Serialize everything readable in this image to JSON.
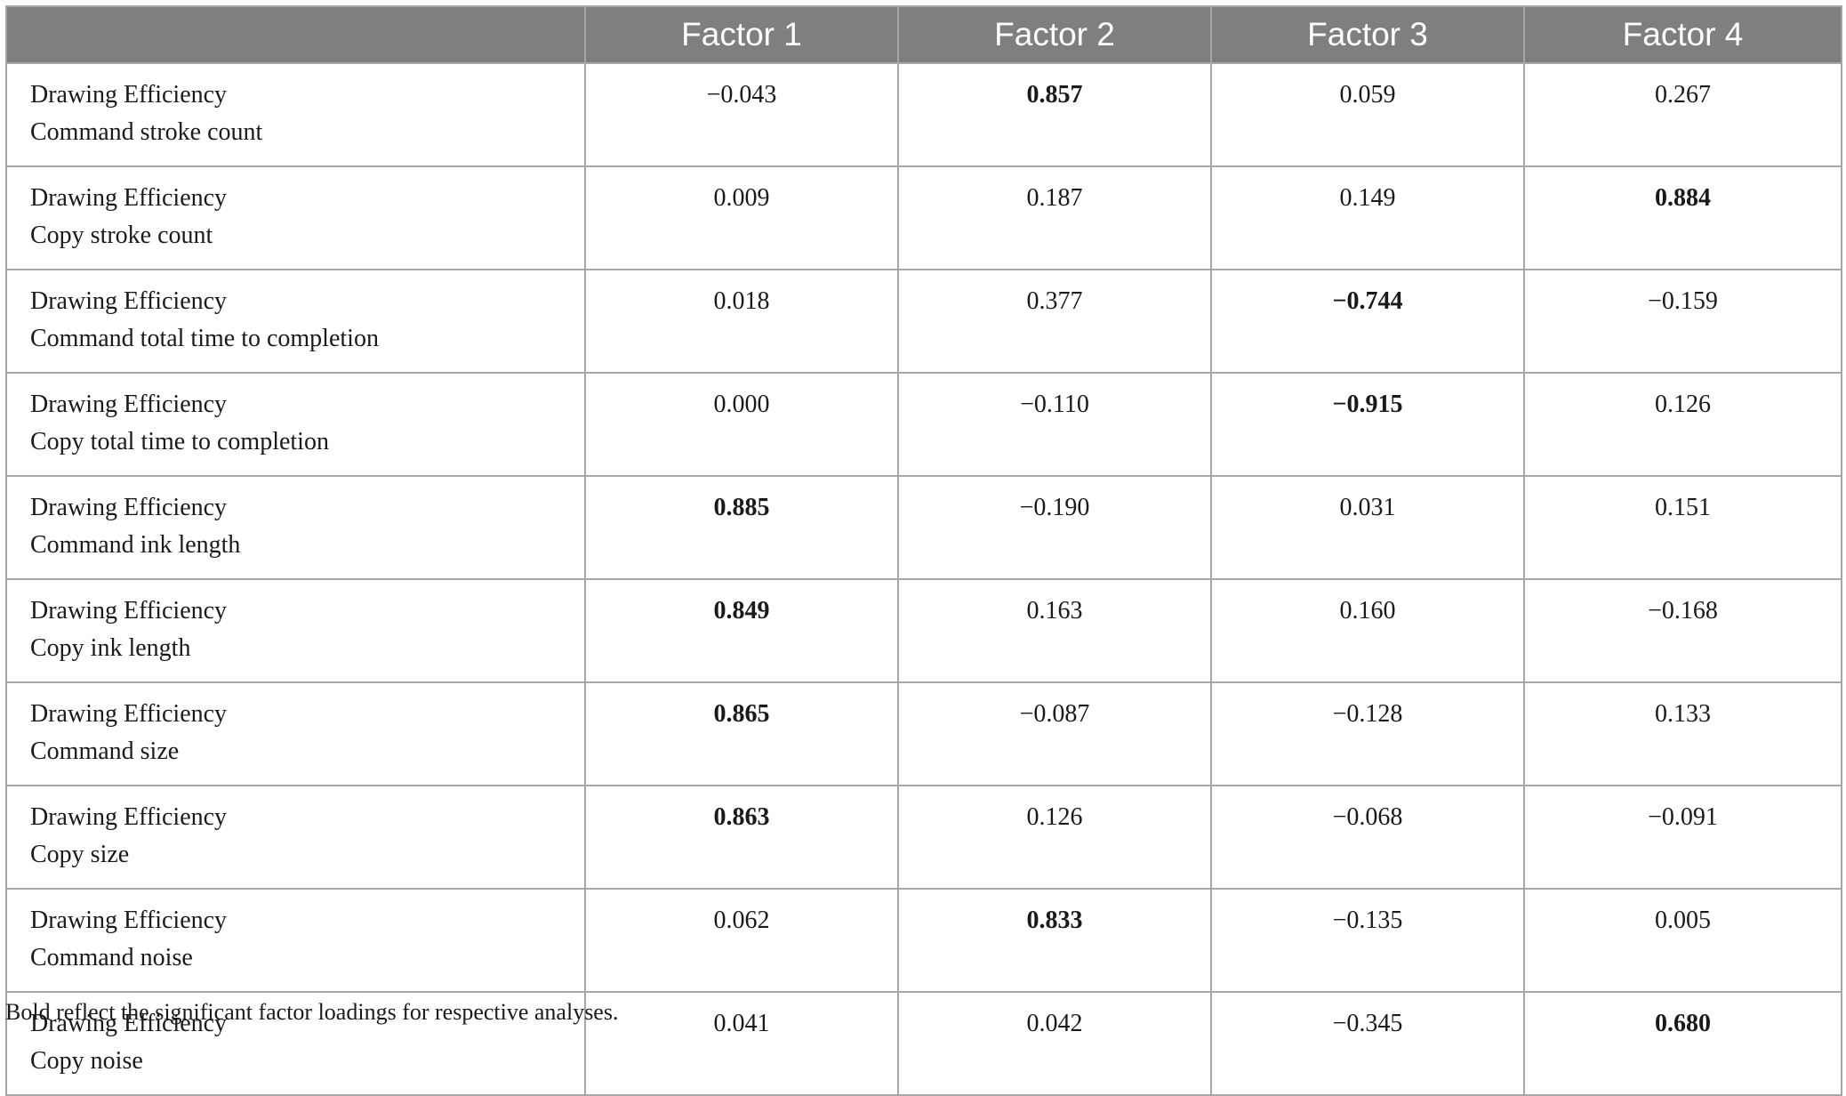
{
  "header": {
    "label_column": "",
    "factors": [
      "Factor 1",
      "Factor 2",
      "Factor 3",
      "Factor 4"
    ]
  },
  "rows": [
    {
      "category": "Drawing Efficiency",
      "measure": "Command stroke count",
      "values": [
        "−0.043",
        "0.857",
        "0.059",
        "0.267"
      ],
      "bold": [
        false,
        true,
        false,
        false
      ]
    },
    {
      "category": "Drawing Efficiency",
      "measure": "Copy stroke count",
      "values": [
        "0.009",
        "0.187",
        "0.149",
        "0.884"
      ],
      "bold": [
        false,
        false,
        false,
        true
      ]
    },
    {
      "category": "Drawing Efficiency",
      "measure": "Command total time to completion",
      "values": [
        "0.018",
        "0.377",
        "−0.744",
        "−0.159"
      ],
      "bold": [
        false,
        false,
        true,
        false
      ]
    },
    {
      "category": "Drawing Efficiency",
      "measure": "Copy total time to completion",
      "values": [
        "0.000",
        "−0.110",
        "−0.915",
        "0.126"
      ],
      "bold": [
        false,
        false,
        true,
        false
      ]
    },
    {
      "category": "Drawing Efficiency",
      "measure": "Command ink length",
      "values": [
        "0.885",
        "−0.190",
        "0.031",
        "0.151"
      ],
      "bold": [
        true,
        false,
        false,
        false
      ]
    },
    {
      "category": "Drawing Efficiency",
      "measure": "Copy ink length",
      "values": [
        "0.849",
        "0.163",
        "0.160",
        "−0.168"
      ],
      "bold": [
        true,
        false,
        false,
        false
      ]
    },
    {
      "category": "Drawing Efficiency",
      "measure": "Command size",
      "values": [
        "0.865",
        "−0.087",
        "−0.128",
        "0.133"
      ],
      "bold": [
        true,
        false,
        false,
        false
      ]
    },
    {
      "category": "Drawing Efficiency",
      "measure": "Copy size",
      "values": [
        "0.863",
        "0.126",
        "−0.068",
        "−0.091"
      ],
      "bold": [
        true,
        false,
        false,
        false
      ]
    },
    {
      "category": "Drawing Efficiency",
      "measure": "Command noise",
      "values": [
        "0.062",
        "0.833",
        "−0.135",
        "0.005"
      ],
      "bold": [
        false,
        true,
        false,
        false
      ]
    },
    {
      "category": "Drawing Efficiency",
      "measure": "Copy noise",
      "values": [
        "0.041",
        "0.042",
        "−0.345",
        "0.680"
      ],
      "bold": [
        false,
        false,
        false,
        true
      ]
    }
  ],
  "footnote": "Bold reflect the significant factor loadings for respective analyses.",
  "colors": {
    "header_bg": "#7f7f7f",
    "header_text": "#ffffff",
    "grid": "#a6a6a6"
  }
}
